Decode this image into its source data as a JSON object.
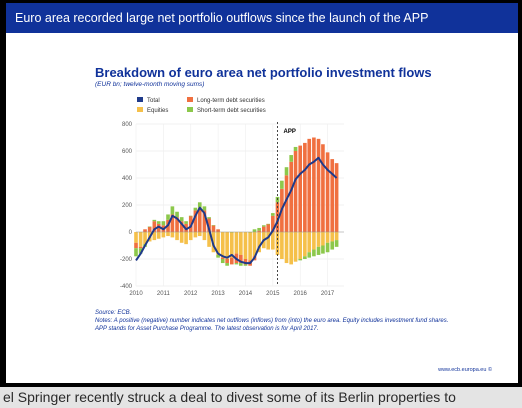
{
  "slide": {
    "header": "Euro area recorded large net portfolio outflows since the launch of the APP",
    "footer_url": "www.ecb.europa.eu ©"
  },
  "ticker": {
    "text": "el Springer recently struck a deal to divest some of its Berlin properties to"
  },
  "colors": {
    "header_bg": "#10329a",
    "total": "#1f3a8a",
    "equities": "#f5c04a",
    "long_term_debt": "#f07040",
    "short_term_debt": "#8cc84b",
    "app_line": "#333333"
  },
  "chart_data": {
    "type": "bar",
    "title": "Breakdown of euro area net portfolio investment flows",
    "subtitle": "(EUR bn; twelve-month moving sums)",
    "source": "Source: ECB.",
    "notes": "Notes: A positive (negative) number indicates net outflows (inflows) from (into) the euro area. Equity includes investment fund shares. APP stands for Asset Purchase Programme. The latest observation is for April 2017.",
    "ylim": [
      -400,
      800
    ],
    "yticks": [
      -400,
      -200,
      0,
      200,
      400,
      600,
      800
    ],
    "xlim": [
      2010,
      2017.6
    ],
    "xticks": [
      "2010",
      "2011",
      "2012",
      "2013",
      "2014",
      "2015",
      "2016",
      "2017"
    ],
    "grid": true,
    "stacked": true,
    "legend": {
      "placement": "top-left",
      "entries": [
        "Total",
        "Equities",
        "Long-term debt securities",
        "Short-term debt securities"
      ]
    },
    "annotation": {
      "label": "APP",
      "x": 2015.17
    },
    "x": [
      2010.0,
      2010.17,
      2010.33,
      2010.5,
      2010.67,
      2010.83,
      2011.0,
      2011.17,
      2011.33,
      2011.5,
      2011.67,
      2011.83,
      2012.0,
      2012.17,
      2012.33,
      2012.5,
      2012.67,
      2012.83,
      2013.0,
      2013.17,
      2013.33,
      2013.5,
      2013.67,
      2013.83,
      2014.0,
      2014.17,
      2014.33,
      2014.5,
      2014.67,
      2014.83,
      2015.0,
      2015.17,
      2015.33,
      2015.5,
      2015.67,
      2015.83,
      2016.0,
      2016.17,
      2016.33,
      2016.5,
      2016.67,
      2016.83,
      2017.0,
      2017.17,
      2017.33
    ],
    "series": [
      {
        "name": "Equities",
        "values": [
          -80,
          -110,
          -90,
          -70,
          -60,
          -50,
          -40,
          -30,
          -40,
          -60,
          -80,
          -90,
          -60,
          -40,
          -30,
          -60,
          -110,
          -150,
          -170,
          -190,
          -200,
          -190,
          -160,
          -170,
          -200,
          -210,
          -180,
          -150,
          -120,
          -130,
          -130,
          -170,
          -200,
          -230,
          -240,
          -220,
          -200,
          -180,
          -150,
          -130,
          -110,
          -100,
          -80,
          -70,
          -60
        ]
      },
      {
        "name": "Long-term debt securities",
        "values": [
          -40,
          -10,
          20,
          40,
          80,
          60,
          50,
          90,
          130,
          110,
          80,
          60,
          120,
          160,
          180,
          160,
          100,
          50,
          20,
          -10,
          -30,
          -50,
          -70,
          -60,
          -40,
          -40,
          -30,
          10,
          40,
          60,
          120,
          220,
          320,
          420,
          520,
          600,
          640,
          660,
          690,
          700,
          690,
          650,
          590,
          540,
          510
        ]
      },
      {
        "name": "Short-term debt securities",
        "values": [
          -60,
          -40,
          -20,
          0,
          10,
          20,
          30,
          40,
          60,
          40,
          30,
          20,
          0,
          20,
          40,
          30,
          10,
          0,
          -20,
          -30,
          -20,
          0,
          -10,
          -20,
          -10,
          0,
          20,
          20,
          10,
          0,
          20,
          40,
          60,
          60,
          50,
          30,
          -10,
          -20,
          -40,
          -50,
          -60,
          -60,
          -70,
          -60,
          -50
        ]
      },
      {
        "name": "Total",
        "values": [
          -210,
          -160,
          -100,
          -40,
          20,
          40,
          20,
          50,
          120,
          100,
          60,
          20,
          40,
          120,
          180,
          140,
          20,
          -100,
          -160,
          -180,
          -190,
          -170,
          -200,
          -220,
          -230,
          -230,
          -190,
          -110,
          -60,
          -40,
          10,
          80,
          170,
          240,
          310,
          390,
          430,
          460,
          500,
          520,
          550,
          500,
          460,
          430,
          400
        ]
      }
    ]
  }
}
